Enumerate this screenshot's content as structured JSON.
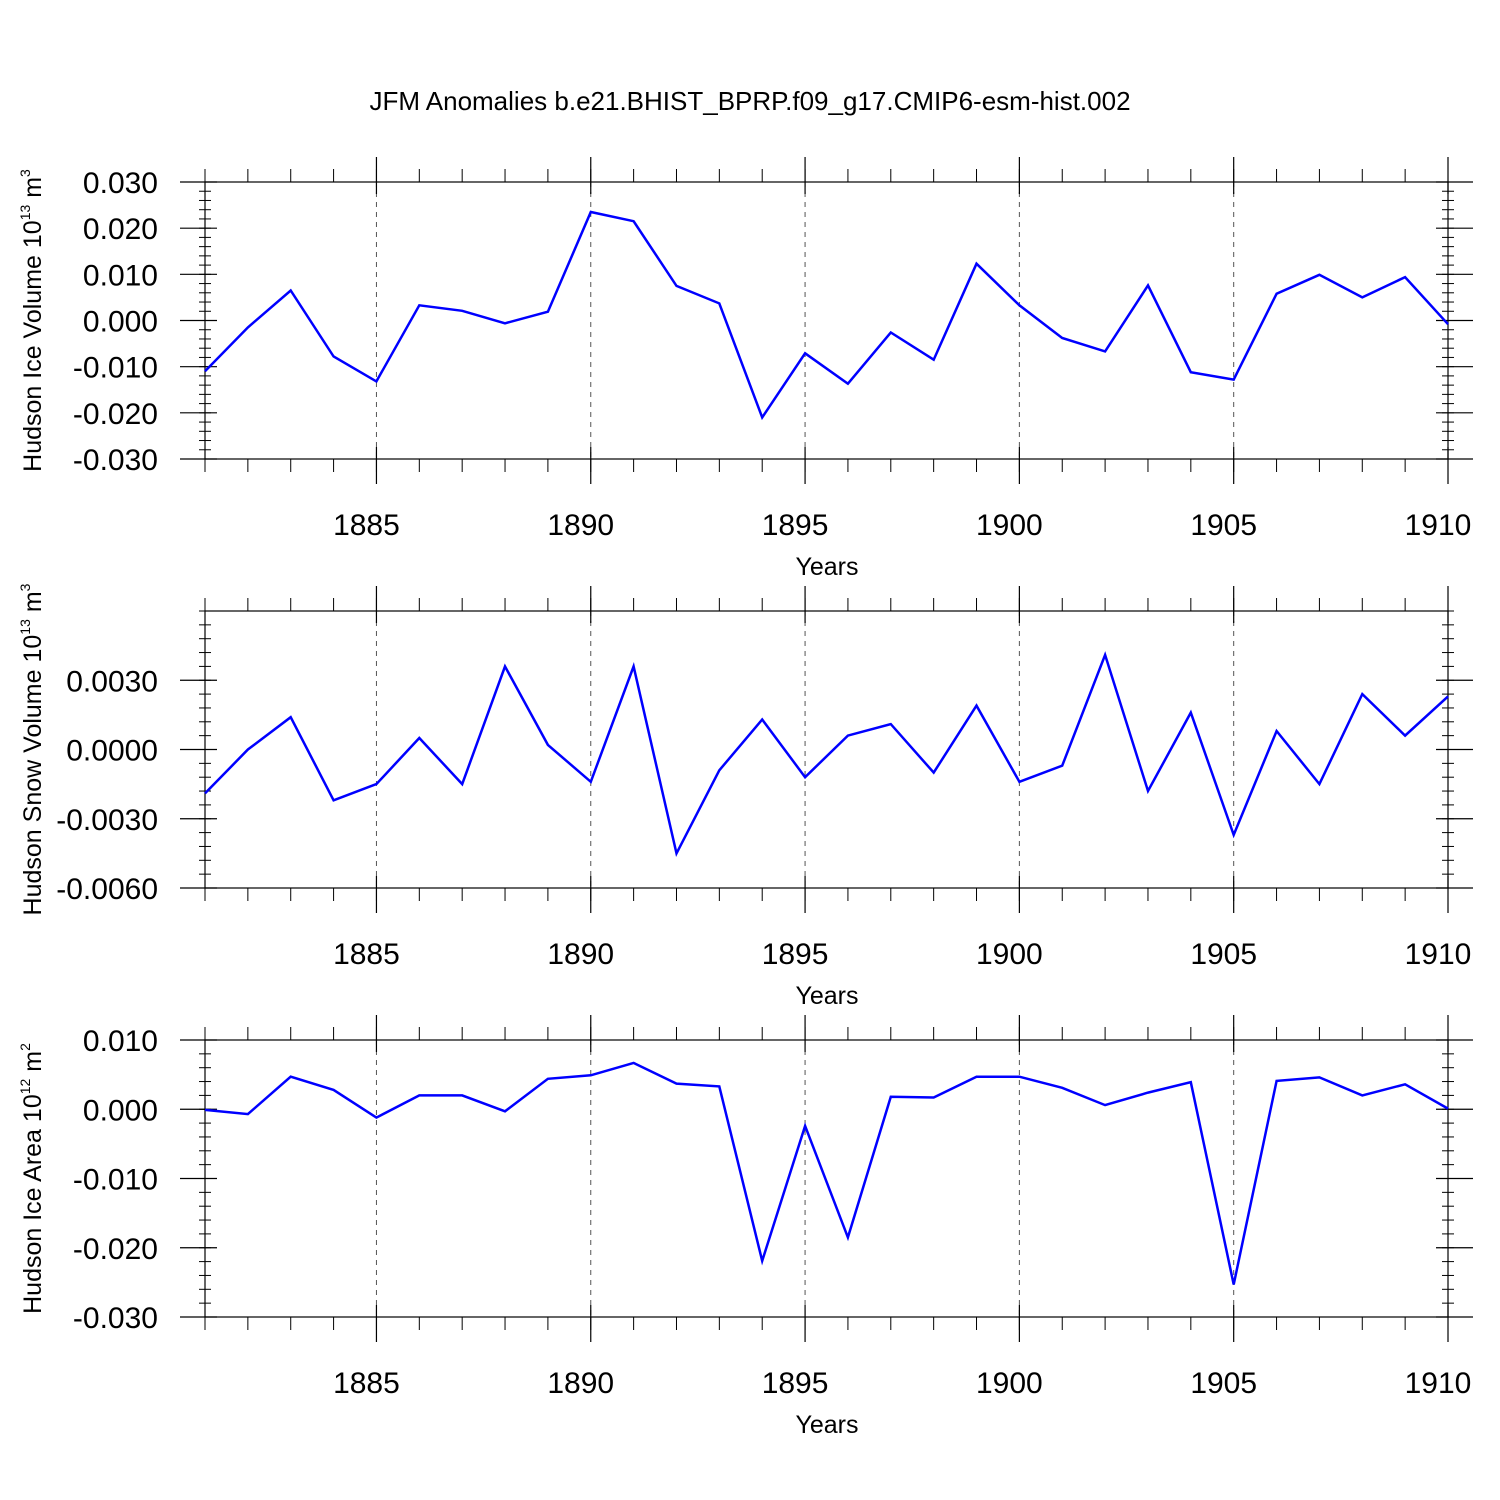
{
  "title": "JFM Anomalies b.e21.BHIST_BPRP.f09_g17.CMIP6-esm-hist.002",
  "line_color": "#0000ff",
  "chart_data": [
    {
      "type": "line",
      "name": "ice-volume",
      "ylabel": {
        "main": "Hudson Ice Volume 10",
        "sup": "13",
        "unit": " m",
        "unit_sup": "3"
      },
      "xlabel": "Years",
      "xlim": [
        1881,
        1910
      ],
      "ylim": [
        -0.03,
        0.03
      ],
      "yticks": [
        0.03,
        0.02,
        0.01,
        0.0,
        -0.01,
        -0.02,
        -0.03
      ],
      "ytick_labels": [
        "0.030",
        "0.020",
        "0.010",
        "0.000",
        "-0.010",
        "-0.020",
        "-0.030"
      ],
      "xticks": [
        1885,
        1890,
        1895,
        1900,
        1905,
        1910
      ],
      "xtick_labels": [
        "1885",
        "1890",
        "1895",
        "1900",
        "1905",
        "1910"
      ],
      "x": [
        1881,
        1882,
        1883,
        1884,
        1885,
        1886,
        1887,
        1888,
        1889,
        1890,
        1891,
        1892,
        1893,
        1894,
        1895,
        1896,
        1897,
        1898,
        1899,
        1900,
        1901,
        1902,
        1903,
        1904,
        1905,
        1906,
        1907,
        1908,
        1909,
        1910
      ],
      "values": [
        -0.011,
        -0.0015,
        0.0065,
        -0.0078,
        -0.0132,
        0.0033,
        0.0021,
        -0.0006,
        0.0019,
        0.0235,
        0.0215,
        0.0075,
        0.0037,
        -0.021,
        -0.0071,
        -0.0137,
        -0.0026,
        -0.0085,
        0.0123,
        0.0033,
        -0.0038,
        -0.0067,
        0.0076,
        -0.0112,
        -0.0128,
        0.0058,
        0.0099,
        0.005,
        0.0094,
        -0.0008
      ]
    },
    {
      "type": "line",
      "name": "snow-volume",
      "ylabel": {
        "main": "Hudson Snow Volume 10",
        "sup": "13",
        "unit": " m",
        "unit_sup": "3"
      },
      "xlabel": "Years",
      "xlim": [
        1881,
        1910
      ],
      "ylim": [
        -0.006,
        0.006
      ],
      "yticks": [
        0.003,
        0.0,
        -0.003,
        -0.006
      ],
      "ytick_labels": [
        "0.0030",
        "0.0000",
        "-0.0030",
        "-0.0060"
      ],
      "xticks": [
        1885,
        1890,
        1895,
        1900,
        1905,
        1910
      ],
      "xtick_labels": [
        "1885",
        "1890",
        "1895",
        "1900",
        "1905",
        "1910"
      ],
      "x": [
        1881,
        1882,
        1883,
        1884,
        1885,
        1886,
        1887,
        1888,
        1889,
        1890,
        1891,
        1892,
        1893,
        1894,
        1895,
        1896,
        1897,
        1898,
        1899,
        1900,
        1901,
        1902,
        1903,
        1904,
        1905,
        1906,
        1907,
        1908,
        1909,
        1910
      ],
      "values": [
        -0.0019,
        0.0,
        0.0014,
        -0.0022,
        -0.0015,
        0.0005,
        -0.0015,
        0.0036,
        0.0002,
        -0.0014,
        0.0036,
        -0.0045,
        -0.0009,
        0.0013,
        -0.0012,
        0.0006,
        0.0011,
        -0.001,
        0.0019,
        -0.0014,
        -0.0007,
        0.0041,
        -0.0018,
        0.0016,
        -0.0037,
        0.0008,
        -0.0015,
        0.0024,
        0.0006,
        0.0023
      ]
    },
    {
      "type": "line",
      "name": "ice-area",
      "ylabel": {
        "main": "Hudson Ice Area 10",
        "sup": "12",
        "unit": " m",
        "unit_sup": "2"
      },
      "xlabel": "Years",
      "xlim": [
        1881,
        1910
      ],
      "ylim": [
        -0.03,
        0.01
      ],
      "yticks": [
        0.01,
        0.0,
        -0.01,
        -0.02,
        -0.03
      ],
      "ytick_labels": [
        "0.010",
        "0.000",
        "-0.010",
        "-0.020",
        "-0.030"
      ],
      "xticks": [
        1885,
        1890,
        1895,
        1900,
        1905,
        1910
      ],
      "xtick_labels": [
        "1885",
        "1890",
        "1895",
        "1900",
        "1905",
        "1910"
      ],
      "x": [
        1881,
        1882,
        1883,
        1884,
        1885,
        1886,
        1887,
        1888,
        1889,
        1890,
        1891,
        1892,
        1893,
        1894,
        1895,
        1896,
        1897,
        1898,
        1899,
        1900,
        1901,
        1902,
        1903,
        1904,
        1905,
        1906,
        1907,
        1908,
        1909,
        1910
      ],
      "values": [
        -0.0001,
        -0.0007,
        0.0047,
        0.0028,
        -0.0012,
        0.002,
        0.002,
        -0.0003,
        0.0044,
        0.0049,
        0.0067,
        0.0037,
        0.0033,
        -0.0219,
        -0.0024,
        -0.0185,
        0.0018,
        0.0017,
        0.0047,
        0.0047,
        0.0031,
        0.0006,
        0.0024,
        0.0039,
        -0.0253,
        0.0041,
        0.0046,
        0.002,
        0.0036,
        0.0001
      ]
    }
  ]
}
